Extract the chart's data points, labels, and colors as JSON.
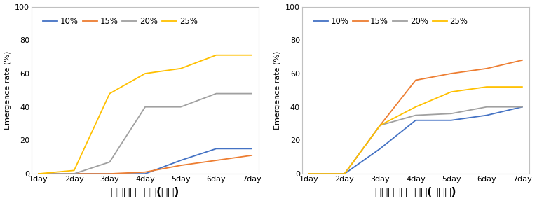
{
  "days": [
    1,
    2,
    3,
    4,
    5,
    6,
    7
  ],
  "day_labels": [
    "1day",
    "2day",
    "3day",
    "4day",
    "5day",
    "6day",
    "7day"
  ],
  "plot1": {
    "title": "본원포장  토양(양토)",
    "data": {
      "10%": [
        0,
        0,
        0,
        0,
        8,
        15,
        15
      ],
      "15%": [
        0,
        0,
        0,
        1,
        5,
        8,
        11
      ],
      "20%": [
        0,
        0,
        7,
        40,
        40,
        48,
        48
      ],
      "25%": [
        0,
        2,
        48,
        60,
        63,
        71,
        71
      ]
    }
  },
  "plot2": {
    "title": "새만금포장  토양(사양토)",
    "data": {
      "10%": [
        0,
        0,
        15,
        32,
        32,
        35,
        40
      ],
      "15%": [
        0,
        0,
        29,
        56,
        60,
        63,
        68
      ],
      "20%": [
        0,
        0,
        29,
        35,
        36,
        40,
        40
      ],
      "25%": [
        0,
        0,
        29,
        40,
        49,
        52,
        52
      ]
    }
  },
  "colors": {
    "10%": "#4472c4",
    "15%": "#ed7d31",
    "20%": "#a0a0a0",
    "25%": "#ffc000"
  },
  "ylabel": "Emergence rate (%)",
  "ylim": [
    0,
    100
  ],
  "yticks": [
    0,
    20,
    40,
    60,
    80,
    100
  ],
  "legend_labels": [
    "10%",
    "15%",
    "20%",
    "25%"
  ],
  "title_fontsize": 11,
  "label_fontsize": 8,
  "tick_fontsize": 8,
  "legend_fontsize": 8.5,
  "background_color": "#ffffff"
}
